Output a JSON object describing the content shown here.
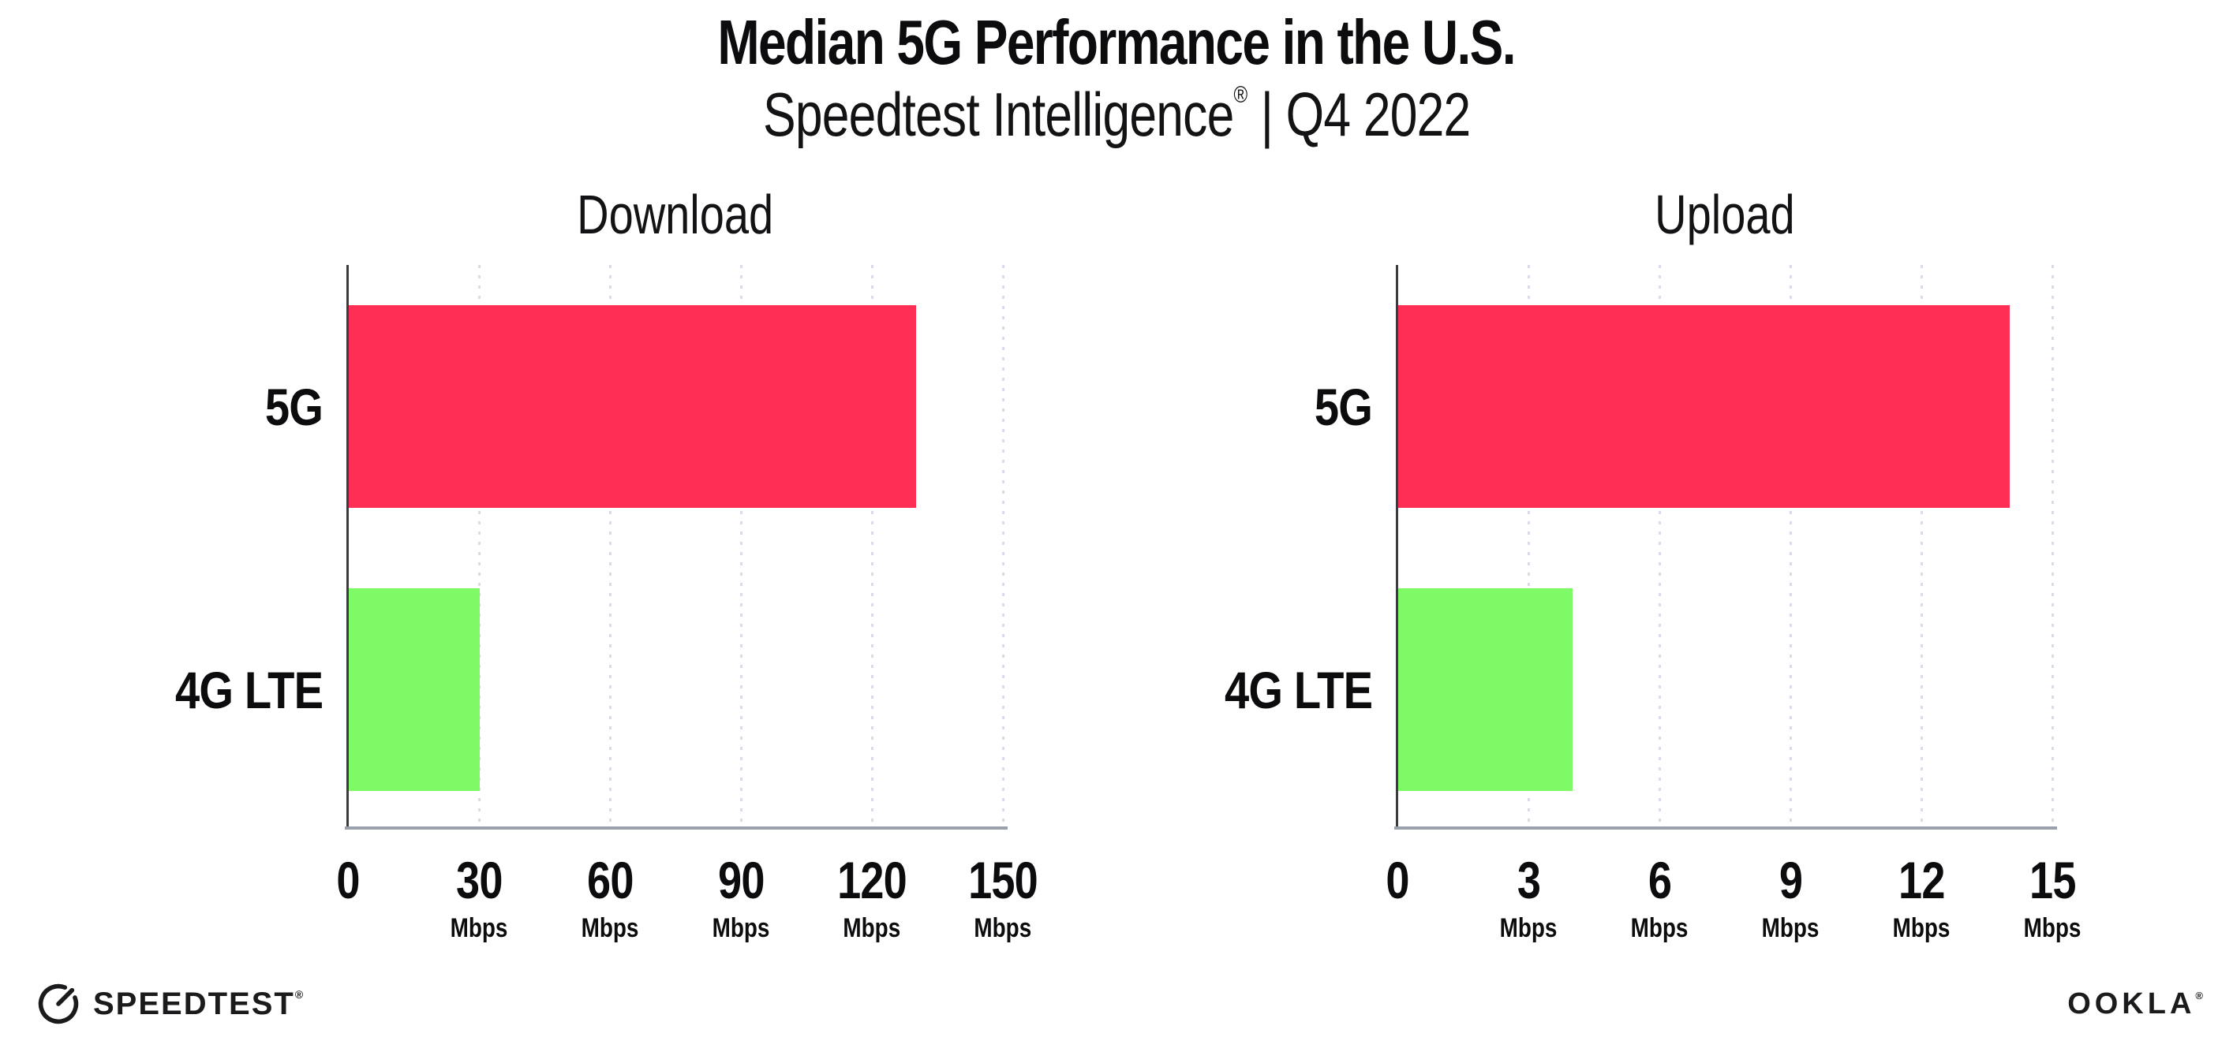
{
  "header": {
    "title": "Median 5G Performance in the U.S.",
    "subtitle_brand": "Speedtest Intelligence",
    "subtitle_reg": "®",
    "subtitle_rest": " | Q4 2022"
  },
  "colors": {
    "bar_5g": "#ff2e55",
    "bar_4g_lte": "#7dfa66",
    "x_axis_line": "#9aa1ad",
    "y_axis_line": "#3a3b42",
    "gridline": "#d9dbe7",
    "text": "#0c0c0e"
  },
  "chart_data": [
    {
      "type": "bar",
      "orientation": "horizontal",
      "title": "Download",
      "categories": [
        "5G",
        "4G LTE"
      ],
      "values": [
        130,
        30
      ],
      "bar_colors": [
        "#ff2e55",
        "#7dfa66"
      ],
      "unit": "Mbps",
      "xlim": [
        0,
        150
      ],
      "xticks": [
        0,
        30,
        60,
        90,
        120,
        150
      ],
      "grid": "dotted-vertical",
      "legend": "none"
    },
    {
      "type": "bar",
      "orientation": "horizontal",
      "title": "Upload",
      "categories": [
        "5G",
        "4G LTE"
      ],
      "values": [
        14,
        4
      ],
      "bar_colors": [
        "#ff2e55",
        "#7dfa66"
      ],
      "unit": "Mbps",
      "xlim": [
        0,
        15
      ],
      "xticks": [
        0,
        3,
        6,
        9,
        12,
        15
      ],
      "grid": "dotted-vertical",
      "legend": "none"
    }
  ],
  "footer": {
    "speedtest_wordmark": "SPEEDTEST",
    "speedtest_reg": "®",
    "ookla_wordmark": "OOKLA",
    "ookla_reg": "®"
  }
}
